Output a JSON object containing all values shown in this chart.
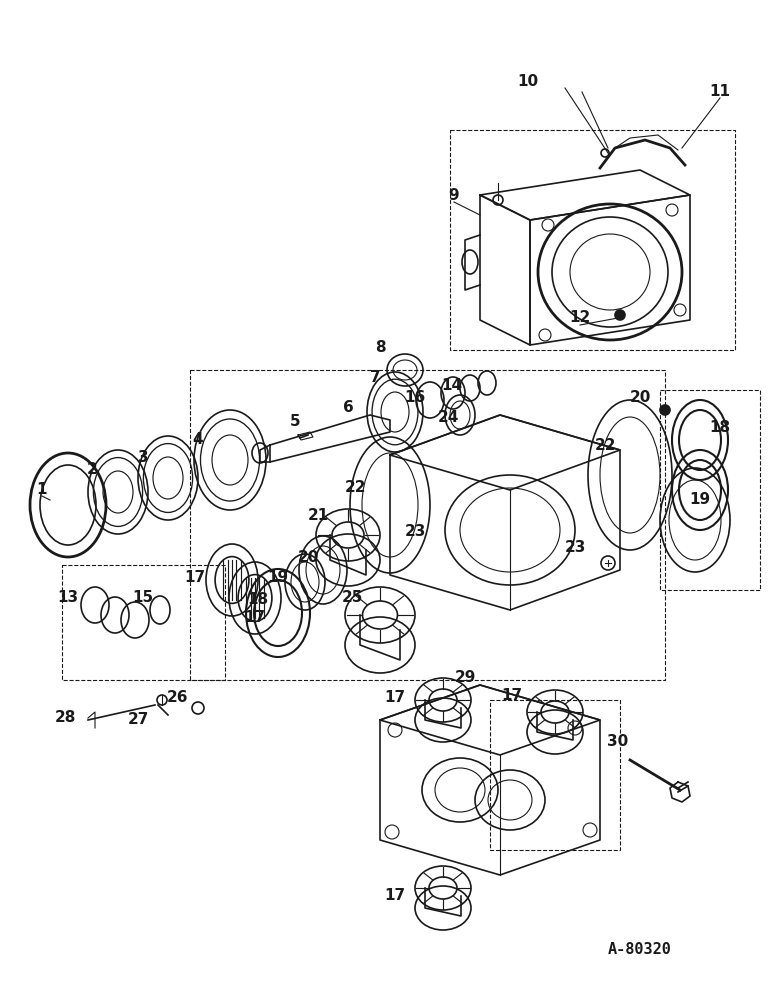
{
  "bg_color": "#ffffff",
  "line_color": "#1a1a1a",
  "fig_width": 7.72,
  "fig_height": 10.0,
  "watermark": "A-80320",
  "dpi": 100
}
